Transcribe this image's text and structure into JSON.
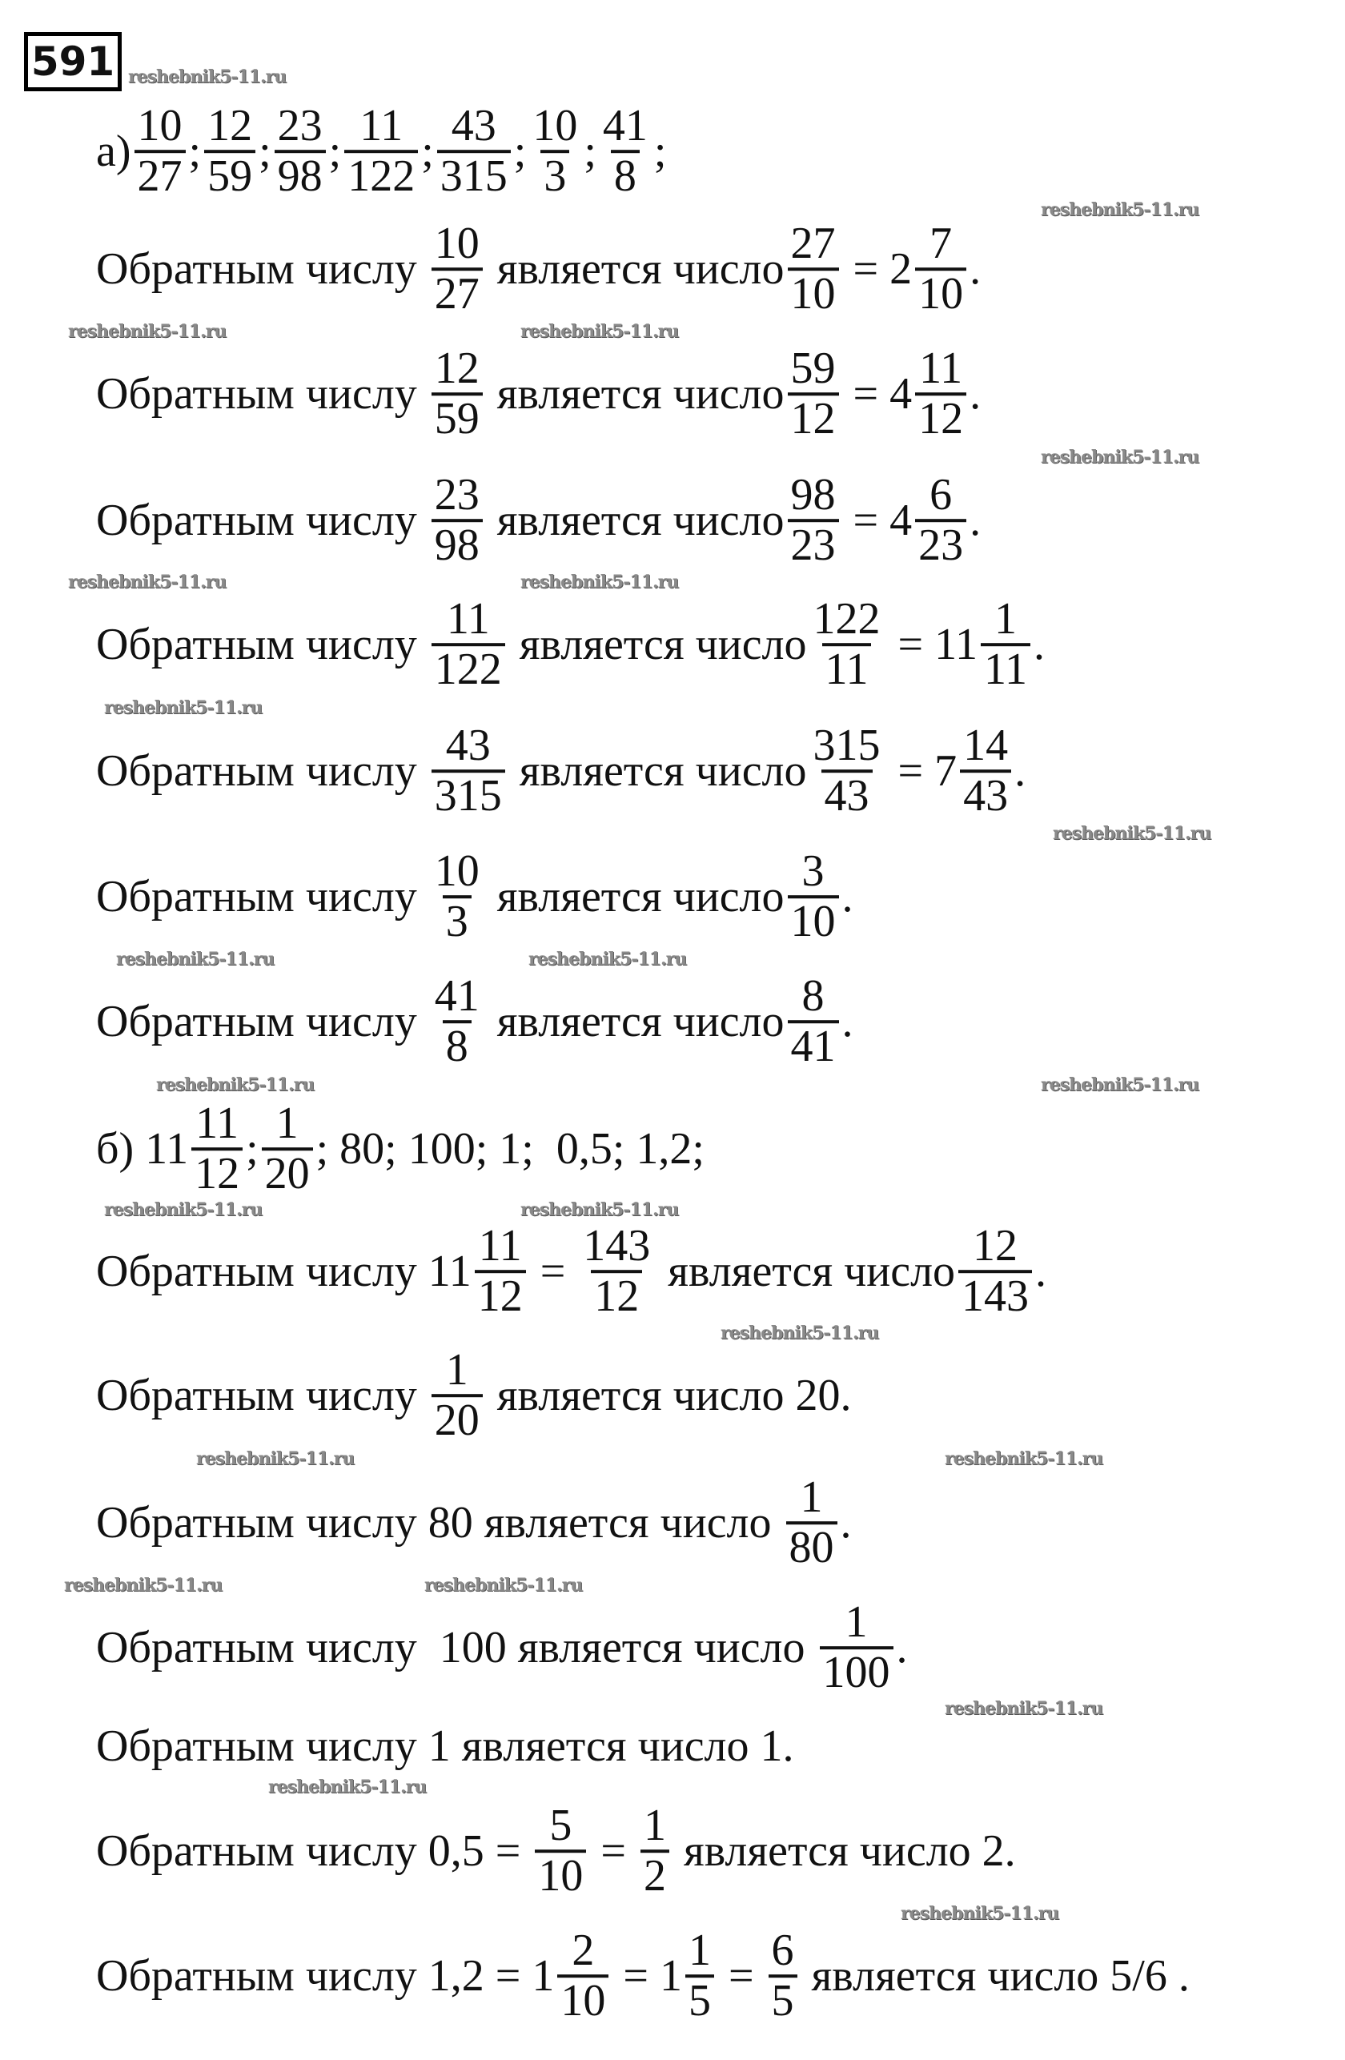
{
  "problem_number": "591",
  "watermark": "reshebnik5-11.ru",
  "part_a": [
    [
      "а)",
      {
        "n": "10",
        "d": "27"
      },
      ";",
      {
        "n": "12",
        "d": "59"
      },
      ";",
      {
        "n": "23",
        "d": "98"
      },
      ";",
      {
        "n": "11",
        "d": "122"
      },
      ";",
      {
        "n": "43",
        "d": "315"
      },
      ";",
      {
        "n": "10",
        "d": "3"
      },
      ";",
      {
        "n": "41",
        "d": "8"
      },
      ";"
    ],
    [
      "Обратным числу ",
      {
        "n": "10",
        "d": "27"
      },
      " является число",
      {
        "n": "27",
        "d": "10"
      },
      " = 2",
      {
        "n": "7",
        "d": "10"
      },
      "."
    ],
    [
      "Обратным числу ",
      {
        "n": "12",
        "d": "59"
      },
      " является число",
      {
        "n": "59",
        "d": "12"
      },
      " = 4",
      {
        "n": "11",
        "d": "12"
      },
      "."
    ],
    [
      "Обратным числу ",
      {
        "n": "23",
        "d": "98"
      },
      " является число",
      {
        "n": "98",
        "d": "23"
      },
      " = 4",
      {
        "n": "6",
        "d": "23"
      },
      "."
    ],
    [
      "Обратным числу ",
      {
        "n": "11",
        "d": "122"
      },
      " является число",
      {
        "n": "122",
        "d": "11"
      },
      " = 11",
      {
        "n": "1",
        "d": "11"
      },
      "."
    ],
    [
      "Обратным числу ",
      {
        "n": "43",
        "d": "315"
      },
      " является число",
      {
        "n": "315",
        "d": "43"
      },
      " = 7",
      {
        "n": "14",
        "d": "43"
      },
      "."
    ],
    [
      "Обратным числу ",
      {
        "n": "10",
        "d": "3"
      },
      " является число",
      {
        "n": "3",
        "d": "10"
      },
      "."
    ],
    [
      "Обратным числу ",
      {
        "n": "41",
        "d": "8"
      },
      " является число",
      {
        "n": "8",
        "d": "41"
      },
      "."
    ]
  ],
  "part_b": [
    [
      "б) 11",
      {
        "n": "11",
        "d": "12"
      },
      ";",
      {
        "n": "1",
        "d": "20"
      },
      "; 80; 100; 1;  0,5; 1,2;"
    ],
    [
      "Обратным числу 11",
      {
        "n": "11",
        "d": "12"
      },
      " = ",
      {
        "n": "143",
        "d": "12"
      },
      " является число",
      {
        "n": "12",
        "d": "143"
      },
      "."
    ],
    [
      "Обратным числу ",
      {
        "n": "1",
        "d": "20"
      },
      " является число 20."
    ],
    [
      "Обратным числу 80 является число ",
      {
        "n": "1",
        "d": "80"
      },
      "."
    ],
    [
      "Обратным числу  100 является число ",
      {
        "n": "1",
        "d": "100"
      },
      "."
    ],
    [
      "Обратным числу 1 является число 1."
    ],
    [
      "Обратным числу 0,5 = ",
      {
        "n": "5",
        "d": "10"
      },
      " = ",
      {
        "n": "1",
        "d": "2"
      },
      " является число 2."
    ],
    [
      "Обратным числу 1,2 = 1",
      {
        "n": "2",
        "d": "10"
      },
      " = 1",
      {
        "n": "1",
        "d": "5"
      },
      " = ",
      {
        "n": "6",
        "d": "5"
      },
      " является число 5/6 ."
    ]
  ]
}
